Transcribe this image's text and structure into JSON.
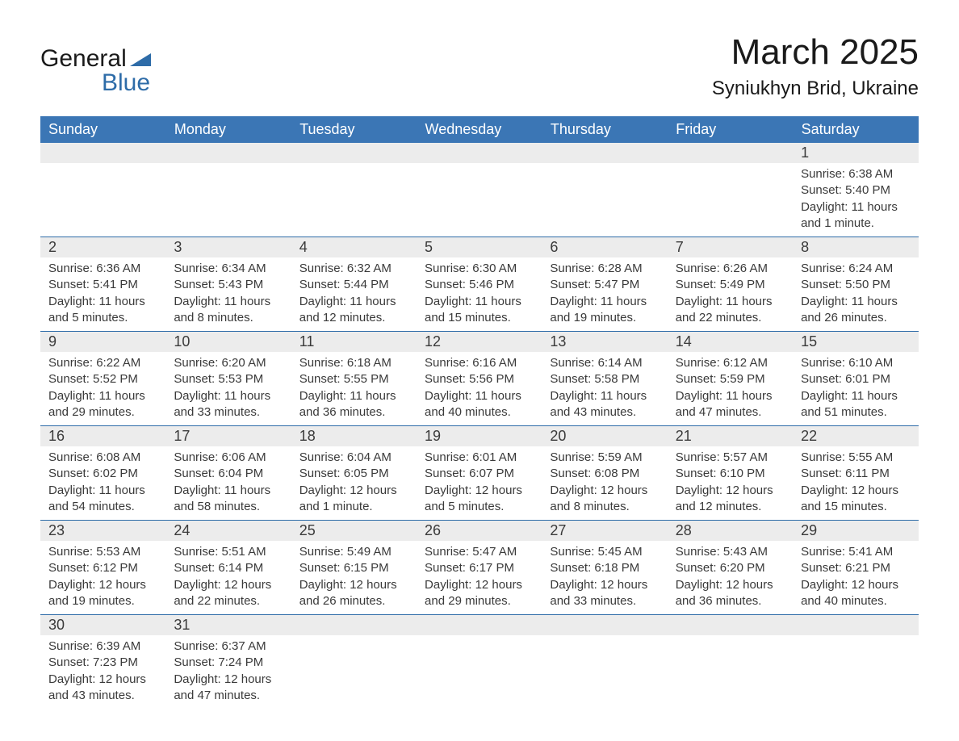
{
  "logo": {
    "word1": "General",
    "word2": "Blue",
    "triangle_color": "#2e6ca8"
  },
  "title": "March 2025",
  "location": "Syniukhyn Brid, Ukraine",
  "colors": {
    "header_bg": "#3b76b5",
    "header_text": "#ffffff",
    "daynum_bg": "#ececec",
    "text": "#3a3a3a",
    "rule": "#2e6ca8",
    "page_bg": "#ffffff"
  },
  "dayHeaders": [
    "Sunday",
    "Monday",
    "Tuesday",
    "Wednesday",
    "Thursday",
    "Friday",
    "Saturday"
  ],
  "weeks": [
    [
      null,
      null,
      null,
      null,
      null,
      null,
      {
        "n": "1",
        "sunrise": "6:38 AM",
        "sunset": "5:40 PM",
        "daylight": "11 hours and 1 minute."
      }
    ],
    [
      {
        "n": "2",
        "sunrise": "6:36 AM",
        "sunset": "5:41 PM",
        "daylight": "11 hours and 5 minutes."
      },
      {
        "n": "3",
        "sunrise": "6:34 AM",
        "sunset": "5:43 PM",
        "daylight": "11 hours and 8 minutes."
      },
      {
        "n": "4",
        "sunrise": "6:32 AM",
        "sunset": "5:44 PM",
        "daylight": "11 hours and 12 minutes."
      },
      {
        "n": "5",
        "sunrise": "6:30 AM",
        "sunset": "5:46 PM",
        "daylight": "11 hours and 15 minutes."
      },
      {
        "n": "6",
        "sunrise": "6:28 AM",
        "sunset": "5:47 PM",
        "daylight": "11 hours and 19 minutes."
      },
      {
        "n": "7",
        "sunrise": "6:26 AM",
        "sunset": "5:49 PM",
        "daylight": "11 hours and 22 minutes."
      },
      {
        "n": "8",
        "sunrise": "6:24 AM",
        "sunset": "5:50 PM",
        "daylight": "11 hours and 26 minutes."
      }
    ],
    [
      {
        "n": "9",
        "sunrise": "6:22 AM",
        "sunset": "5:52 PM",
        "daylight": "11 hours and 29 minutes."
      },
      {
        "n": "10",
        "sunrise": "6:20 AM",
        "sunset": "5:53 PM",
        "daylight": "11 hours and 33 minutes."
      },
      {
        "n": "11",
        "sunrise": "6:18 AM",
        "sunset": "5:55 PM",
        "daylight": "11 hours and 36 minutes."
      },
      {
        "n": "12",
        "sunrise": "6:16 AM",
        "sunset": "5:56 PM",
        "daylight": "11 hours and 40 minutes."
      },
      {
        "n": "13",
        "sunrise": "6:14 AM",
        "sunset": "5:58 PM",
        "daylight": "11 hours and 43 minutes."
      },
      {
        "n": "14",
        "sunrise": "6:12 AM",
        "sunset": "5:59 PM",
        "daylight": "11 hours and 47 minutes."
      },
      {
        "n": "15",
        "sunrise": "6:10 AM",
        "sunset": "6:01 PM",
        "daylight": "11 hours and 51 minutes."
      }
    ],
    [
      {
        "n": "16",
        "sunrise": "6:08 AM",
        "sunset": "6:02 PM",
        "daylight": "11 hours and 54 minutes."
      },
      {
        "n": "17",
        "sunrise": "6:06 AM",
        "sunset": "6:04 PM",
        "daylight": "11 hours and 58 minutes."
      },
      {
        "n": "18",
        "sunrise": "6:04 AM",
        "sunset": "6:05 PM",
        "daylight": "12 hours and 1 minute."
      },
      {
        "n": "19",
        "sunrise": "6:01 AM",
        "sunset": "6:07 PM",
        "daylight": "12 hours and 5 minutes."
      },
      {
        "n": "20",
        "sunrise": "5:59 AM",
        "sunset": "6:08 PM",
        "daylight": "12 hours and 8 minutes."
      },
      {
        "n": "21",
        "sunrise": "5:57 AM",
        "sunset": "6:10 PM",
        "daylight": "12 hours and 12 minutes."
      },
      {
        "n": "22",
        "sunrise": "5:55 AM",
        "sunset": "6:11 PM",
        "daylight": "12 hours and 15 minutes."
      }
    ],
    [
      {
        "n": "23",
        "sunrise": "5:53 AM",
        "sunset": "6:12 PM",
        "daylight": "12 hours and 19 minutes."
      },
      {
        "n": "24",
        "sunrise": "5:51 AM",
        "sunset": "6:14 PM",
        "daylight": "12 hours and 22 minutes."
      },
      {
        "n": "25",
        "sunrise": "5:49 AM",
        "sunset": "6:15 PM",
        "daylight": "12 hours and 26 minutes."
      },
      {
        "n": "26",
        "sunrise": "5:47 AM",
        "sunset": "6:17 PM",
        "daylight": "12 hours and 29 minutes."
      },
      {
        "n": "27",
        "sunrise": "5:45 AM",
        "sunset": "6:18 PM",
        "daylight": "12 hours and 33 minutes."
      },
      {
        "n": "28",
        "sunrise": "5:43 AM",
        "sunset": "6:20 PM",
        "daylight": "12 hours and 36 minutes."
      },
      {
        "n": "29",
        "sunrise": "5:41 AM",
        "sunset": "6:21 PM",
        "daylight": "12 hours and 40 minutes."
      }
    ],
    [
      {
        "n": "30",
        "sunrise": "6:39 AM",
        "sunset": "7:23 PM",
        "daylight": "12 hours and 43 minutes."
      },
      {
        "n": "31",
        "sunrise": "6:37 AM",
        "sunset": "7:24 PM",
        "daylight": "12 hours and 47 minutes."
      },
      null,
      null,
      null,
      null,
      null
    ]
  ],
  "labels": {
    "sunrise": "Sunrise: ",
    "sunset": "Sunset: ",
    "daylight": "Daylight: "
  }
}
